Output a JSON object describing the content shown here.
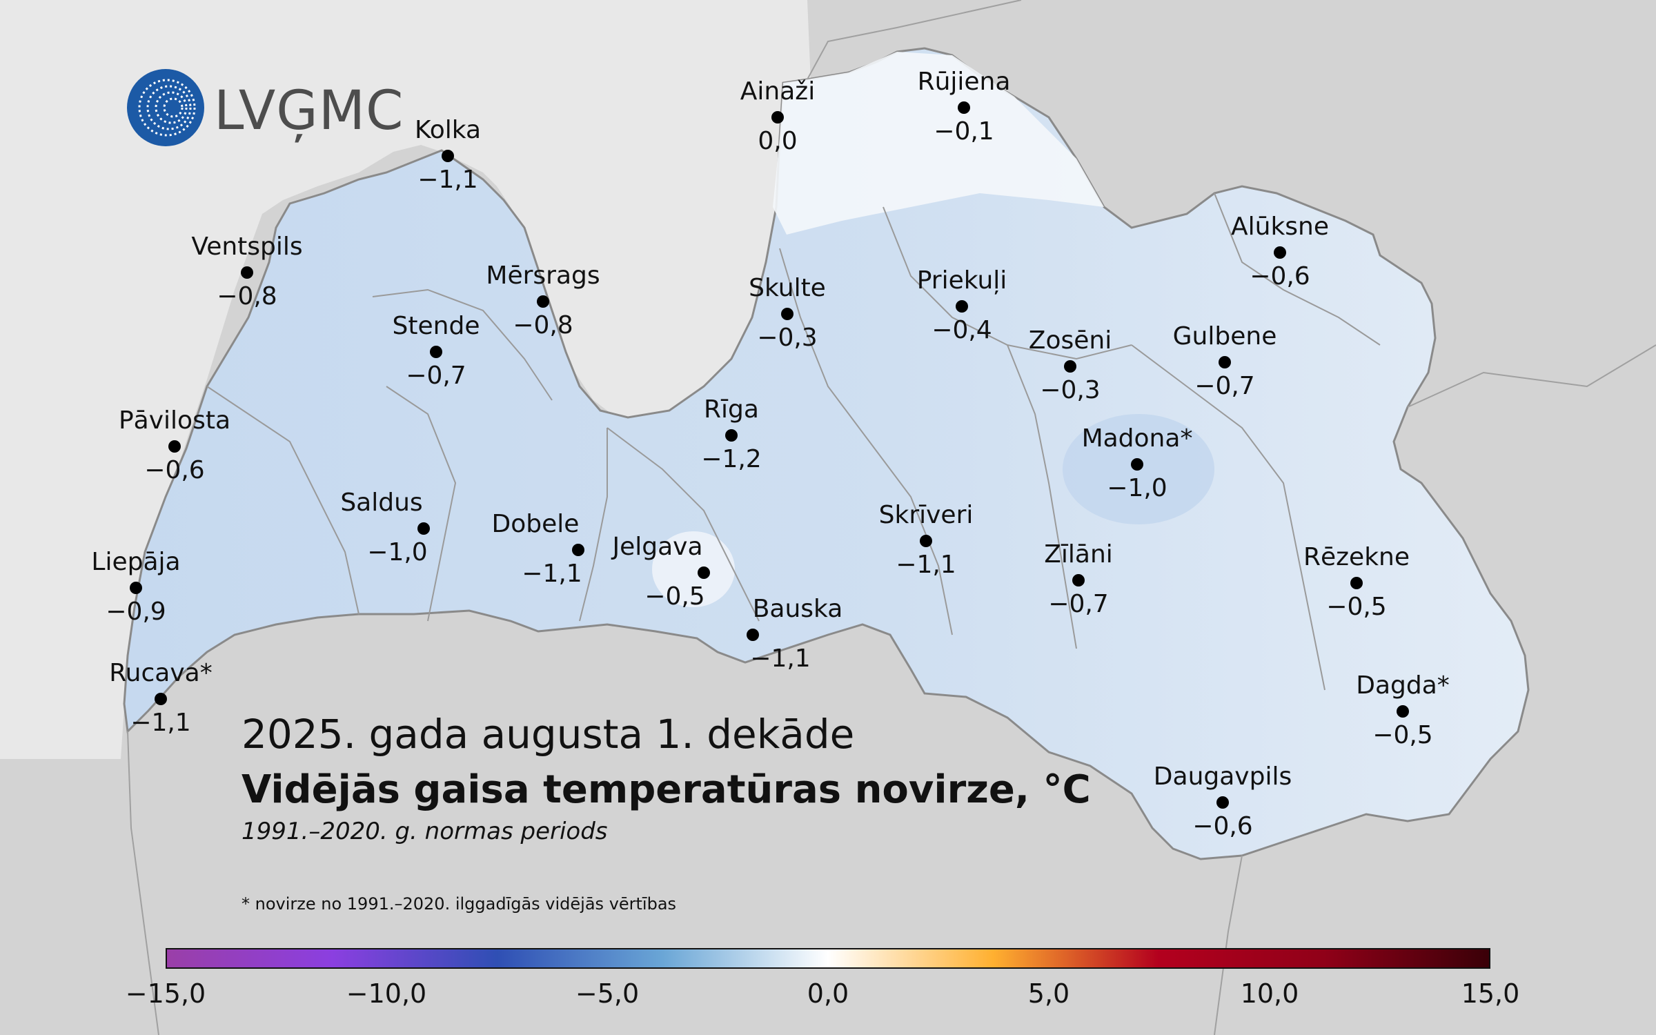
{
  "map": {
    "title": "2025. gada augusta 1. dekāde",
    "subtitle": "Vidējās gaisa temperatūras novirze, °C",
    "period_note": "1991.–2020. g. normas periods",
    "footnote": "* novirze no 1991.–2020. ilggadīgās vidējās vērtības",
    "logo_text": "LVĢMC",
    "colors": {
      "sea": "#e9e9e9",
      "land_outside": "#cfcfcf",
      "latvia_cold": "#c3d7ee",
      "latvia_mild": "#dde8f4",
      "latvia_neutral": "#ffffff",
      "border": "#8a8a8a",
      "logo_blue": "#1c5aa6"
    }
  },
  "stations": [
    {
      "name": "Ainaži",
      "value": "0,0"
    },
    {
      "name": "Rūjiena",
      "value": "−0,1"
    },
    {
      "name": "Kolka",
      "value": "−1,1"
    },
    {
      "name": "Ventspils",
      "value": "−0,8"
    },
    {
      "name": "Mērsrags",
      "value": "−0,8"
    },
    {
      "name": "Skulte",
      "value": "−0,3"
    },
    {
      "name": "Priekuļi",
      "value": "−0,4"
    },
    {
      "name": "Alūksne",
      "value": "−0,6"
    },
    {
      "name": "Stende",
      "value": "−0,7"
    },
    {
      "name": "Zosēni",
      "value": "−0,3"
    },
    {
      "name": "Gulbene",
      "value": "−0,7"
    },
    {
      "name": "Pāvilosta",
      "value": "−0,6"
    },
    {
      "name": "Rīga",
      "value": "−1,2"
    },
    {
      "name": "Madona*",
      "value": "−1,0"
    },
    {
      "name": "Saldus",
      "value": "−1,0"
    },
    {
      "name": "Dobele",
      "value": "−1,1"
    },
    {
      "name": "Skrīveri",
      "value": "−1,1"
    },
    {
      "name": "Jelgava",
      "value": "−0,5"
    },
    {
      "name": "Zīlāni",
      "value": "−0,7"
    },
    {
      "name": "Rēzekne",
      "value": "−0,5"
    },
    {
      "name": "Liepāja",
      "value": "−0,9"
    },
    {
      "name": "Bauska",
      "value": "−1,1"
    },
    {
      "name": "Rucava*",
      "value": "−1,1"
    },
    {
      "name": "Dagda*",
      "value": "−0,5"
    },
    {
      "name": "Daugavpils",
      "value": "−0,6"
    }
  ],
  "legend": {
    "ticks": [
      "−15,0",
      "−10,0",
      "−5,0",
      "0,0",
      "5,0",
      "10,0",
      "15,0"
    ],
    "min": -15,
    "max": 15,
    "gradient_colors": [
      "#9a3fa8",
      "#8b3fe0",
      "#2f4fb4",
      "#6aa6d6",
      "#ffffff",
      "#ffb030",
      "#b3001e",
      "#900018",
      "#3a0008"
    ]
  }
}
